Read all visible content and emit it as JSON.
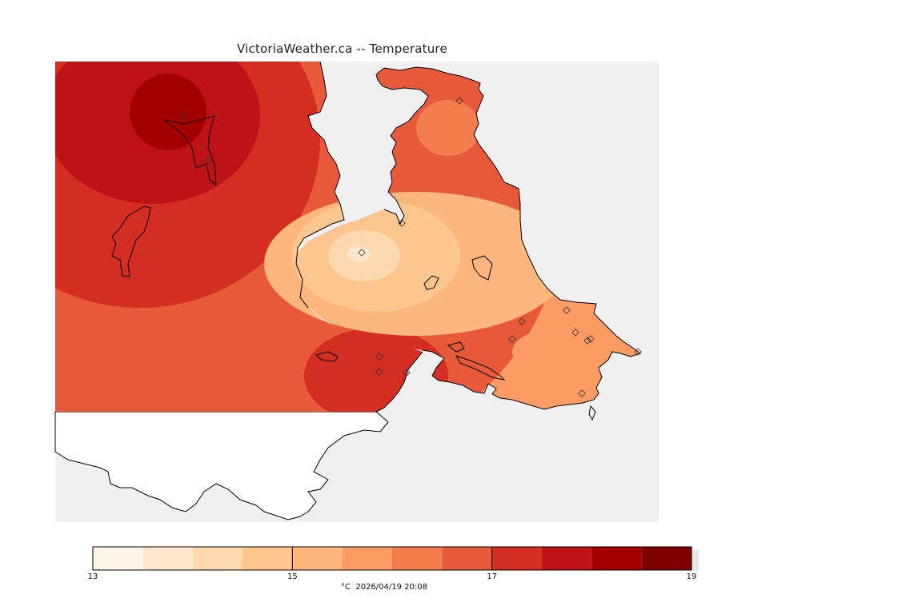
{
  "title": "VictoriaWeather.ca -- Temperature",
  "colors": {
    "background": "#ffffff",
    "water": "#f0f0f0",
    "uncovered_land": "#ffffff",
    "coastline": "#000000"
  },
  "legend": {
    "levels": [
      13,
      13.5,
      14,
      14.5,
      15,
      15.5,
      16,
      16.5,
      17,
      17.5,
      18,
      18.5,
      19
    ],
    "colors": [
      "#fff5eb",
      "#fee6ce",
      "#fdd9b0",
      "#fdc58f",
      "#fdb67c",
      "#fc9b63",
      "#f47d50",
      "#e65a3a",
      "#d42d21",
      "#bd1317",
      "#a50000",
      "#7f0000"
    ],
    "tick_labels": [
      "13",
      "15",
      "17",
      "19"
    ],
    "tick_values": [
      13,
      15,
      17,
      19
    ],
    "unit_label": "°C  2026/04/19 20:08"
  },
  "stations_icon": "diamond-station-icon"
}
